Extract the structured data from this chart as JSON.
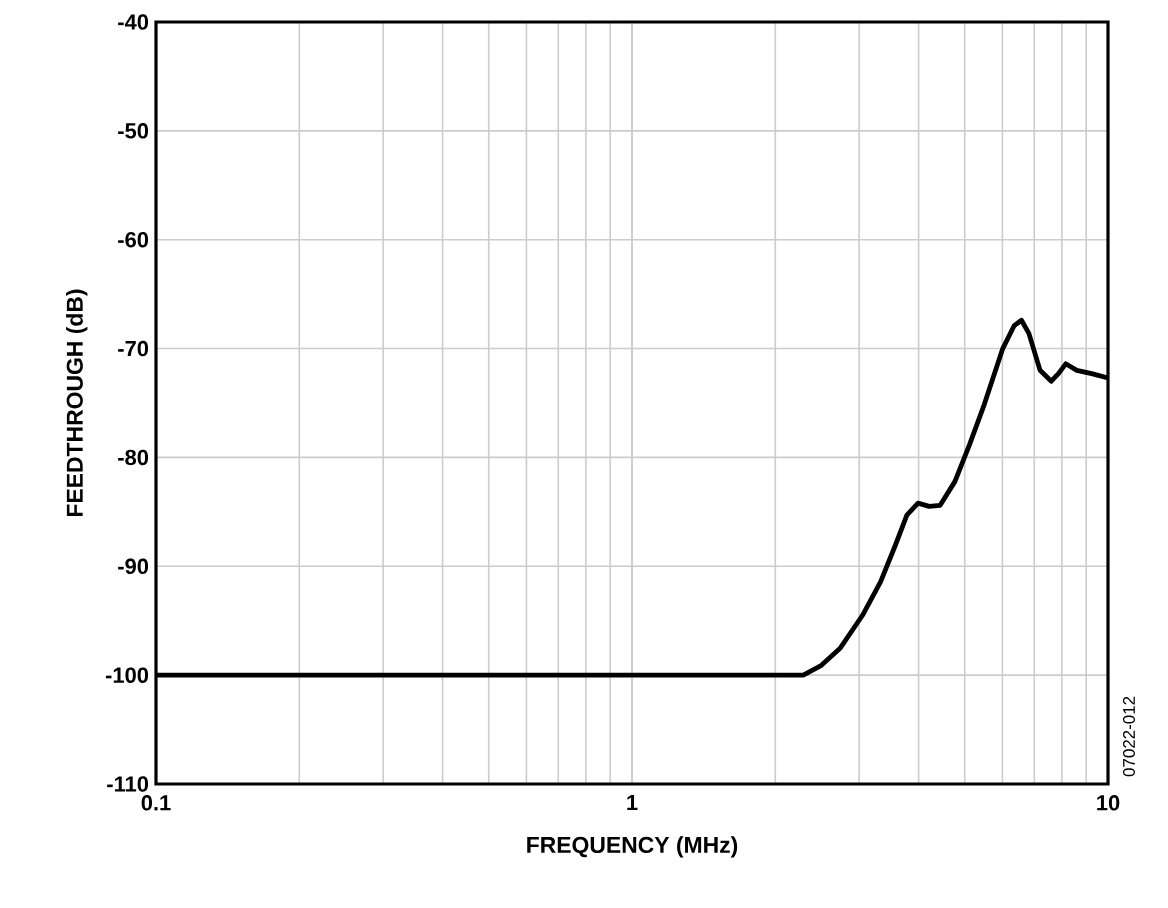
{
  "chart_data": {
    "type": "line",
    "xlabel": "FREQUENCY (MHz)",
    "ylabel": "FEEDTHROUGH (dB)",
    "log": "x",
    "grid": true,
    "xlim": [
      0.1,
      10
    ],
    "ylim": [
      -110,
      -40
    ],
    "xticks": [
      0.1,
      1,
      10
    ],
    "yticks": [
      -40,
      -50,
      -60,
      -70,
      -80,
      -90,
      -100,
      -110
    ],
    "annotations": [
      "07022-012"
    ],
    "series": [
      {
        "color": "#000000",
        "x": [
          0.1,
          2.29,
          2.5,
          2.74,
          3.05,
          3.33,
          3.58,
          3.78,
          3.99,
          4.21,
          4.44,
          4.77,
          5.12,
          5.5,
          6.01,
          6.35,
          6.58,
          6.82,
          7.2,
          7.6,
          7.87,
          8.15,
          8.6,
          9.24,
          10
        ],
        "values": [
          -100,
          -100,
          -99.1,
          -97.5,
          -94.5,
          -91.4,
          -88.0,
          -85.3,
          -84.2,
          -84.5,
          -84.4,
          -82.2,
          -78.8,
          -75.1,
          -70.0,
          -67.9,
          -67.4,
          -68.6,
          -72.0,
          -73.0,
          -72.3,
          -71.4,
          -72.0,
          -72.3,
          -72.7
        ]
      }
    ]
  }
}
